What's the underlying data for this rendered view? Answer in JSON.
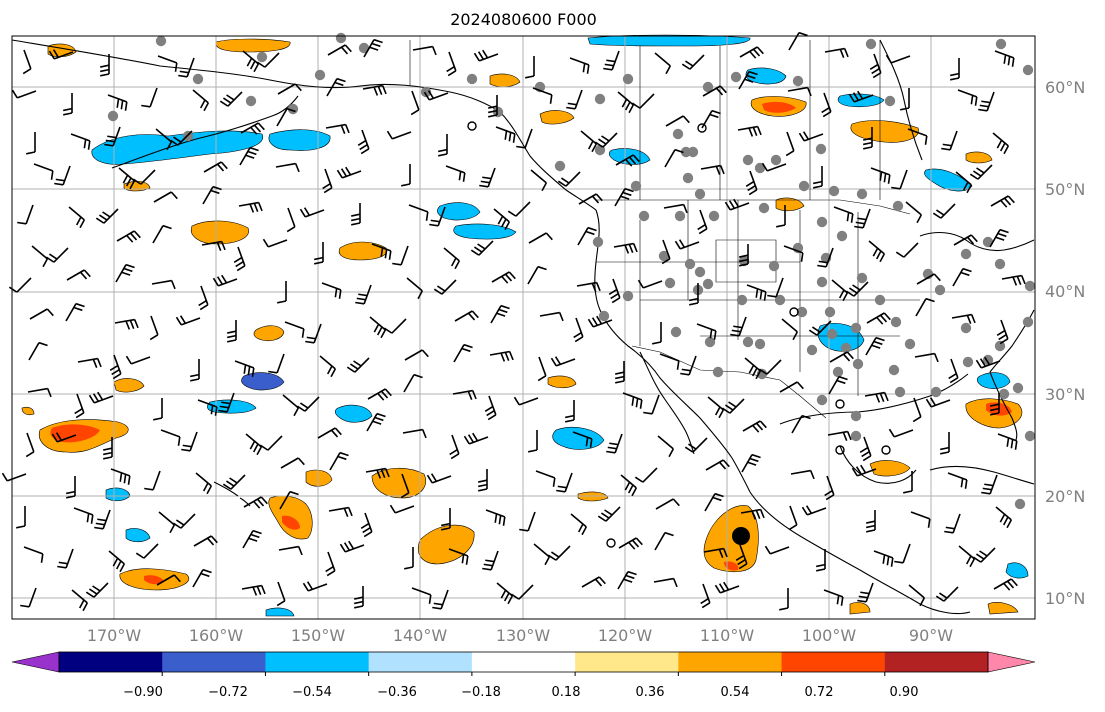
{
  "title": "2024080600 F000",
  "latitude_labels": [
    "60°N",
    "50°N",
    "40°N",
    "30°N",
    "20°N",
    "10°N"
  ],
  "longitude_labels": [
    "170°W",
    "160°W",
    "150°W",
    "140°W",
    "130°W",
    "120°W",
    "110°W",
    "100°W",
    "90°W"
  ],
  "colorbar": {
    "tick_labels": [
      "−0.90",
      "−0.72",
      "−0.54",
      "−0.36",
      "−0.18",
      "0.18",
      "0.36",
      "0.54",
      "0.72",
      "0.90"
    ],
    "colors": [
      "#9932cc",
      "#000080",
      "#3a5fcd",
      "#00bfff",
      "#b0e2ff",
      "#ffffff",
      "#ffe88a",
      "#ffa500",
      "#ff4500",
      "#b22222",
      "#ff88aa"
    ]
  },
  "colors": {
    "positive_light": "#ffe88a",
    "positive": "#ffa500",
    "positive_strong": "#ff4500",
    "negative_light": "#b0e2ff",
    "negative": "#00bfff",
    "negative_strong": "#3a5fcd",
    "station_marker": "#808080",
    "gridline": "#b0b0b0"
  }
}
